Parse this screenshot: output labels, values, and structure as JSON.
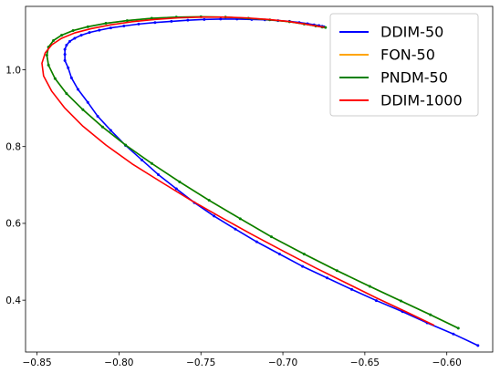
{
  "chart_data": {
    "type": "line",
    "title": "",
    "xlabel": "",
    "ylabel": "",
    "xlim": [
      -0.857,
      -0.572
    ],
    "ylim": [
      0.265,
      1.165
    ],
    "xticks": [
      -0.85,
      -0.8,
      -0.75,
      -0.7,
      -0.65,
      -0.6
    ],
    "xtick_labels": [
      "−0.85",
      "−0.80",
      "−0.75",
      "−0.70",
      "−0.65",
      "−0.60"
    ],
    "yticks": [
      0.4,
      0.6,
      0.8,
      1.0
    ],
    "ytick_labels": [
      "0.4",
      "0.6",
      "0.8",
      "1.0"
    ],
    "grid": false,
    "legend": {
      "placement": "top-right"
    },
    "series": [
      {
        "name": "DDIM-50",
        "color": "#0000ff",
        "markers": true,
        "x": [
          -0.581,
          -0.596,
          -0.612,
          -0.627,
          -0.643,
          -0.658,
          -0.673,
          -0.688,
          -0.702,
          -0.716,
          -0.729,
          -0.742,
          -0.754,
          -0.765,
          -0.776,
          -0.786,
          -0.796,
          -0.805,
          -0.813,
          -0.819,
          -0.825,
          -0.829,
          -0.831,
          -0.833,
          -0.833,
          -0.833,
          -0.832,
          -0.83,
          -0.827,
          -0.823,
          -0.818,
          -0.812,
          -0.805,
          -0.797,
          -0.788,
          -0.778,
          -0.768,
          -0.758,
          -0.748,
          -0.738,
          -0.728,
          -0.719,
          -0.711,
          -0.703,
          -0.696,
          -0.69,
          -0.685,
          -0.681,
          -0.678,
          -0.676,
          -0.675
        ],
        "y": [
          0.282,
          0.312,
          0.341,
          0.37,
          0.399,
          0.428,
          0.458,
          0.488,
          0.52,
          0.552,
          0.585,
          0.619,
          0.654,
          0.69,
          0.727,
          0.765,
          0.803,
          0.842,
          0.879,
          0.915,
          0.949,
          0.979,
          1.005,
          1.024,
          1.04,
          1.053,
          1.064,
          1.074,
          1.082,
          1.09,
          1.097,
          1.103,
          1.109,
          1.114,
          1.119,
          1.123,
          1.126,
          1.129,
          1.131,
          1.132,
          1.132,
          1.131,
          1.13,
          1.128,
          1.126,
          1.123,
          1.12,
          1.117,
          1.115,
          1.113,
          1.112
        ]
      },
      {
        "name": "FON-50",
        "color": "#ffa500",
        "markers": false,
        "x": [
          -0.593,
          -0.61,
          -0.628,
          -0.647,
          -0.667,
          -0.687,
          -0.707,
          -0.726,
          -0.745,
          -0.763,
          -0.78,
          -0.796,
          -0.81,
          -0.822,
          -0.832,
          -0.839,
          -0.843,
          -0.844,
          -0.843,
          -0.84,
          -0.835,
          -0.828,
          -0.819,
          -0.808,
          -0.795,
          -0.78,
          -0.765,
          -0.75,
          -0.735,
          -0.721,
          -0.708,
          -0.696,
          -0.687,
          -0.68,
          -0.676,
          -0.674
        ],
        "y": [
          0.327,
          0.362,
          0.398,
          0.436,
          0.477,
          0.52,
          0.565,
          0.612,
          0.66,
          0.708,
          0.756,
          0.804,
          0.851,
          0.896,
          0.938,
          0.977,
          1.012,
          1.038,
          1.059,
          1.076,
          1.09,
          1.102,
          1.112,
          1.121,
          1.128,
          1.134,
          1.137,
          1.138,
          1.137,
          1.134,
          1.13,
          1.125,
          1.119,
          1.114,
          1.111,
          1.11
        ]
      },
      {
        "name": "PNDM-50",
        "color": "#008000",
        "markers": true,
        "x": [
          -0.593,
          -0.61,
          -0.628,
          -0.647,
          -0.667,
          -0.687,
          -0.707,
          -0.726,
          -0.745,
          -0.763,
          -0.78,
          -0.796,
          -0.81,
          -0.822,
          -0.832,
          -0.839,
          -0.843,
          -0.844,
          -0.843,
          -0.84,
          -0.835,
          -0.828,
          -0.819,
          -0.808,
          -0.795,
          -0.78,
          -0.765,
          -0.75,
          -0.735,
          -0.721,
          -0.708,
          -0.696,
          -0.687,
          -0.68,
          -0.676,
          -0.674
        ],
        "y": [
          0.327,
          0.362,
          0.398,
          0.436,
          0.477,
          0.52,
          0.565,
          0.612,
          0.66,
          0.708,
          0.756,
          0.804,
          0.851,
          0.896,
          0.938,
          0.977,
          1.012,
          1.038,
          1.059,
          1.076,
          1.09,
          1.102,
          1.112,
          1.121,
          1.128,
          1.134,
          1.137,
          1.138,
          1.137,
          1.134,
          1.13,
          1.125,
          1.119,
          1.114,
          1.111,
          1.11
        ]
      },
      {
        "name": "DDIM-1000",
        "color": "#ff0000",
        "markers": false,
        "x": [
          -0.608,
          -0.625,
          -0.643,
          -0.661,
          -0.68,
          -0.699,
          -0.718,
          -0.737,
          -0.756,
          -0.774,
          -0.792,
          -0.808,
          -0.822,
          -0.833,
          -0.841,
          -0.846,
          -0.847,
          -0.845,
          -0.841,
          -0.835,
          -0.827,
          -0.817,
          -0.805,
          -0.792,
          -0.778,
          -0.764,
          -0.75,
          -0.736,
          -0.722,
          -0.709,
          -0.697,
          -0.688,
          -0.681,
          -0.677,
          -0.675
        ],
        "y": [
          0.335,
          0.37,
          0.406,
          0.444,
          0.484,
          0.526,
          0.569,
          0.614,
          0.66,
          0.707,
          0.755,
          0.804,
          0.853,
          0.9,
          0.944,
          0.984,
          1.017,
          1.044,
          1.065,
          1.082,
          1.096,
          1.107,
          1.117,
          1.125,
          1.131,
          1.135,
          1.137,
          1.137,
          1.135,
          1.131,
          1.126,
          1.12,
          1.115,
          1.112,
          1.111
        ]
      }
    ]
  }
}
